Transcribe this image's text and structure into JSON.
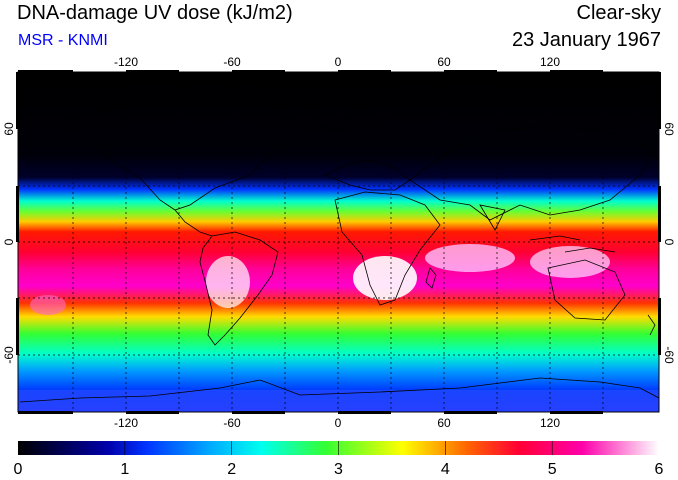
{
  "header": {
    "title": "DNA-damage UV dose (kJ/m2)",
    "source": "MSR - KNMI",
    "sky_condition": "Clear-sky",
    "date": "23 January 1967"
  },
  "map": {
    "projection": "equirectangular",
    "lon_ticks_top": [
      "-120",
      "-60",
      "0",
      "60",
      "120"
    ],
    "lon_ticks_bottom": [
      "-120",
      "-60",
      "0",
      "60",
      "120"
    ],
    "lat_ticks_left": [
      "60",
      "0",
      "-60"
    ],
    "lat_ticks_right": [
      "60",
      "0",
      "-60"
    ],
    "grid": "dashed every 30 degrees"
  },
  "colorbar": {
    "min": 0,
    "max": 6,
    "tick_labels": [
      "0",
      "1",
      "2",
      "3",
      "4",
      "5",
      "6"
    ],
    "colors": [
      "#000000",
      "#0000ff",
      "#00ffff",
      "#00ff00",
      "#ffff00",
      "#ff0000",
      "#ff00ff",
      "#ffffff"
    ]
  }
}
